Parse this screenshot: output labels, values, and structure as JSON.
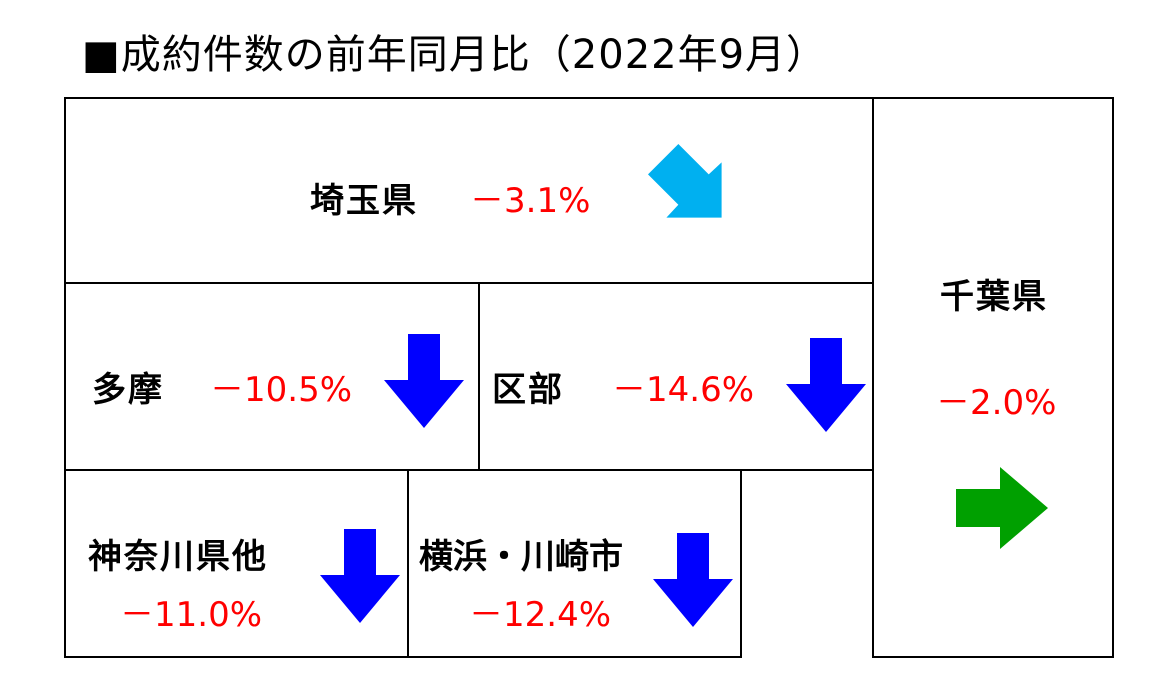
{
  "title": "■成約件数の前年同月比（2022年9月）",
  "colors": {
    "down_arrow": "#0000ff",
    "diagonal_down_arrow": "#00b0f0",
    "flat_arrow": "#00a000",
    "percent_text": "#ff0000",
    "border": "#000000"
  },
  "regions": {
    "saitama": {
      "name": "埼玉県",
      "change": "－3.1%",
      "trend_icon": "arrow-down-right-icon"
    },
    "chiba": {
      "name": "千葉県",
      "change": "－2.0%",
      "trend_icon": "arrow-right-icon"
    },
    "tama": {
      "name": "多摩",
      "change": "－10.5%",
      "trend_icon": "arrow-down-icon"
    },
    "kubu": {
      "name": "区部",
      "change": "－14.6%",
      "trend_icon": "arrow-down-icon"
    },
    "kanagawa_other": {
      "name": "神奈川県他",
      "change": "－11.0%",
      "trend_icon": "arrow-down-icon"
    },
    "yokohama_kawasaki": {
      "name": "横浜・川崎市",
      "change": "－12.4%",
      "trend_icon": "arrow-down-icon"
    }
  }
}
